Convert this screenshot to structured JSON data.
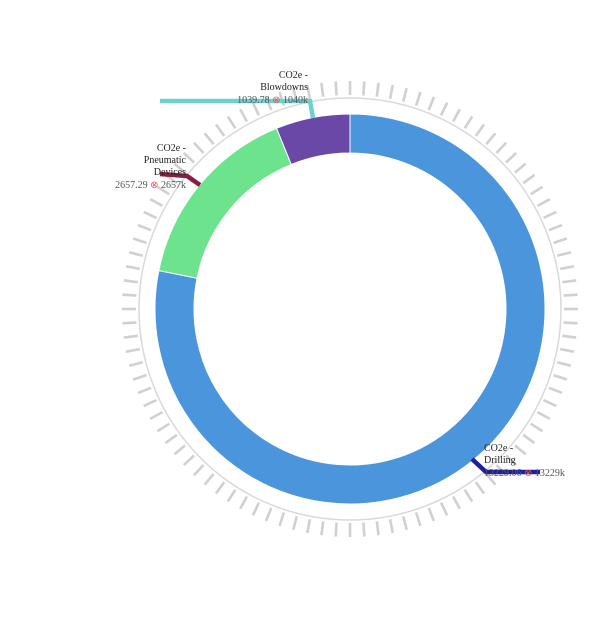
{
  "chart_data": {
    "type": "pie",
    "variant": "donut",
    "title": "",
    "slices": [
      {
        "name_lines": [
          "CO2e -",
          "Drilling"
        ],
        "value": 13229.06,
        "value_text": "13229.06",
        "short_text": "13229k",
        "color": "#4a95dc",
        "leader_color": "#1f1f9e"
      },
      {
        "name_lines": [
          "CO2e -",
          "Pneumatic",
          "Devices"
        ],
        "value": 2657.29,
        "value_text": "2657.29",
        "short_text": "2657k",
        "color": "#6ee38e",
        "leader_color": "#8b1e3f"
      },
      {
        "name_lines": [
          "CO2e -",
          "Blowdowns"
        ],
        "value": 1039.78,
        "value_text": "1039.78",
        "short_text": "1040k",
        "color": "#6a48a8",
        "leader_color": "#6fd0d0"
      }
    ],
    "ring_tick_color": "#d0d0d0",
    "marker_color": "#e05555"
  }
}
